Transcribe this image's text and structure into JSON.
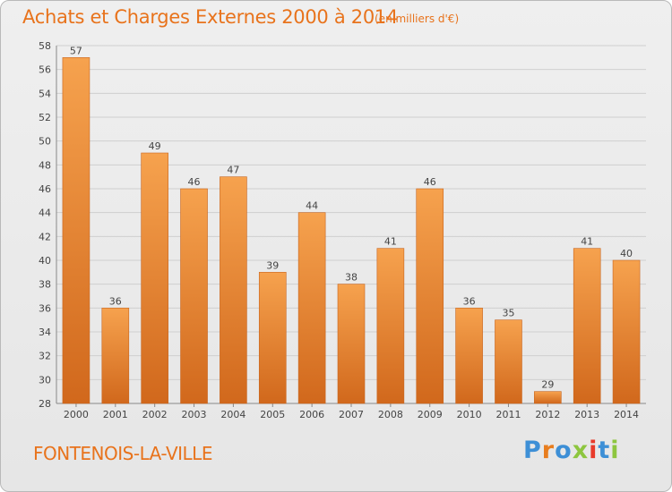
{
  "header": {
    "title": "Achats et Charges Externes 2000 à 2014",
    "unit": "(en milliers d'€)"
  },
  "footer": {
    "commune": "FONTENOIS-LA-VILLE",
    "logo": "Proxiti"
  },
  "colors": {
    "accent": "#e8731c",
    "bar_light": "#f6a24e",
    "bar_dark": "#d1681c",
    "logo_letters": [
      "#3d8fd6",
      "#e87d1e",
      "#3d8fd6",
      "#8dc63f",
      "#e83a2a",
      "#3d8fd6",
      "#8dc63f"
    ]
  },
  "chart_data": {
    "type": "bar",
    "categories": [
      "2000",
      "2001",
      "2002",
      "2003",
      "2004",
      "2005",
      "2006",
      "2007",
      "2008",
      "2009",
      "2010",
      "2011",
      "2012",
      "2013",
      "2014"
    ],
    "values": [
      57,
      36,
      49,
      46,
      47,
      39,
      44,
      38,
      41,
      46,
      36,
      35,
      29,
      41,
      40
    ],
    "ylim": [
      28,
      58
    ],
    "yticks": [
      28,
      30,
      32,
      34,
      36,
      38,
      40,
      42,
      44,
      46,
      48,
      50,
      52,
      54,
      56,
      58
    ],
    "grid": true,
    "title": "Achats et Charges Externes 2000 à 2014"
  }
}
